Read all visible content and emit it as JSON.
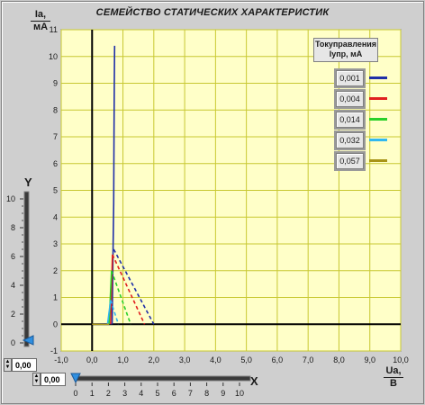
{
  "title": "СЕМЕЙСТВО СТАТИЧЕСКИХ ХАРАКТЕРИСТИК",
  "y_axis_label": {
    "line1": "Ia,",
    "line2": "мА"
  },
  "x_axis_label": {
    "line1": "Ua,",
    "line2": "В"
  },
  "legend": {
    "title_line1": "Токуправления",
    "title_line2": "Iупр, мА",
    "entries": [
      {
        "value": "0,001",
        "color": "#1f2fa8"
      },
      {
        "value": "0,004",
        "color": "#e02020"
      },
      {
        "value": "0,014",
        "color": "#2ad02a"
      },
      {
        "value": "0,032",
        "color": "#30b8f0"
      },
      {
        "value": "0,057",
        "color": "#a89418"
      }
    ]
  },
  "y_control": {
    "label": "Y",
    "value": "0,00",
    "slider_value": 0,
    "ticks": [
      "10",
      "8",
      "6",
      "4",
      "2",
      "0"
    ]
  },
  "x_control": {
    "label": "X",
    "value": "0,00",
    "slider_value": 0,
    "ticks": [
      "0",
      "1",
      "2",
      "3",
      "4",
      "5",
      "6",
      "7",
      "8",
      "9",
      "10"
    ]
  },
  "chart_data": {
    "type": "line",
    "xlim": [
      -1,
      10
    ],
    "ylim": [
      -1,
      11
    ],
    "x_ticks": [
      "-1,0",
      "0,0",
      "1,0",
      "2,0",
      "3,0",
      "4,0",
      "5,0",
      "6,0",
      "7,0",
      "8,0",
      "9,0",
      "10,0"
    ],
    "y_ticks": [
      "-1",
      "0",
      "1",
      "2",
      "3",
      "4",
      "5",
      "6",
      "7",
      "8",
      "9",
      "10",
      "11"
    ],
    "grid": true,
    "series": [
      {
        "name": "0,001",
        "color": "#1f2fa8",
        "style": "solid",
        "points": [
          [
            0,
            0
          ],
          [
            0.65,
            0.02
          ],
          [
            0.68,
            2.8
          ],
          [
            0.7,
            4.5
          ],
          [
            0.71,
            7
          ],
          [
            0.72,
            9
          ],
          [
            0.73,
            10.4
          ]
        ]
      },
      {
        "name": "0,001",
        "color": "#1f2fa8",
        "style": "dashed",
        "points": [
          [
            0.7,
            2.8
          ],
          [
            2.0,
            0
          ]
        ]
      },
      {
        "name": "0,004",
        "color": "#e02020",
        "style": "solid",
        "points": [
          [
            0.6,
            0
          ],
          [
            0.66,
            2.6
          ]
        ]
      },
      {
        "name": "0,004",
        "color": "#e02020",
        "style": "dashed",
        "points": [
          [
            0.66,
            2.6
          ],
          [
            1.7,
            0
          ]
        ]
      },
      {
        "name": "0,014",
        "color": "#2ad02a",
        "style": "solid",
        "points": [
          [
            0.55,
            0
          ],
          [
            0.63,
            2.0
          ]
        ]
      },
      {
        "name": "0,014",
        "color": "#2ad02a",
        "style": "dashed",
        "points": [
          [
            0.63,
            2.0
          ],
          [
            1.25,
            0
          ]
        ]
      },
      {
        "name": "0,032",
        "color": "#30b8f0",
        "style": "solid",
        "points": [
          [
            0.5,
            0
          ],
          [
            0.6,
            0.9
          ]
        ]
      },
      {
        "name": "0,032",
        "color": "#30b8f0",
        "style": "dashed",
        "points": [
          [
            0.6,
            0.9
          ],
          [
            0.85,
            0
          ]
        ]
      },
      {
        "name": "0,057",
        "color": "#a89418",
        "style": "solid",
        "points": [
          [
            0,
            0
          ],
          [
            0.55,
            0
          ]
        ]
      }
    ]
  }
}
